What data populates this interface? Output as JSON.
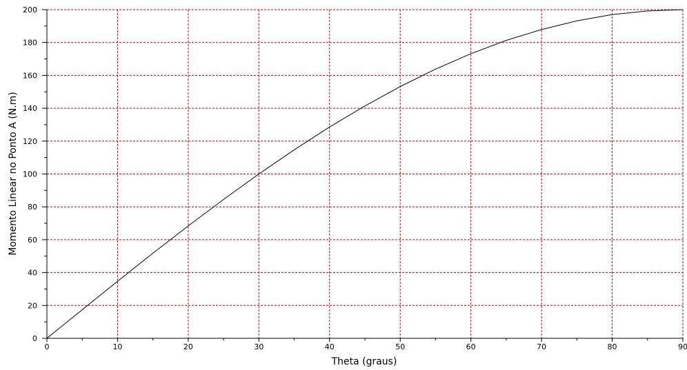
{
  "chart_data": {
    "type": "line",
    "xlabel": "Theta (graus)",
    "ylabel": "Momento Linear no Ponto A (N.m)",
    "xlim": [
      0,
      90
    ],
    "ylim": [
      0,
      200
    ],
    "xticks": [
      "0",
      "10",
      "20",
      "30",
      "40",
      "50",
      "60",
      "70",
      "80",
      "90"
    ],
    "yticks": [
      "0",
      "20",
      "40",
      "60",
      "80",
      "100",
      "120",
      "140",
      "160",
      "180",
      "200"
    ],
    "grid": true,
    "colors": {
      "grid": "#cc0000",
      "line": "#000000",
      "axis": "#000000"
    },
    "series": [
      {
        "x": [
          0,
          5,
          10,
          15,
          20,
          25,
          30,
          35,
          40,
          45,
          50,
          55,
          60,
          65,
          70,
          75,
          80,
          85,
          90
        ],
        "y": [
          0,
          17.4,
          34.7,
          51.8,
          68.4,
          84.5,
          100,
          114.7,
          128.6,
          141.4,
          153.2,
          163.8,
          173.2,
          181.3,
          187.9,
          193.2,
          197.0,
          199.2,
          200
        ]
      }
    ]
  }
}
